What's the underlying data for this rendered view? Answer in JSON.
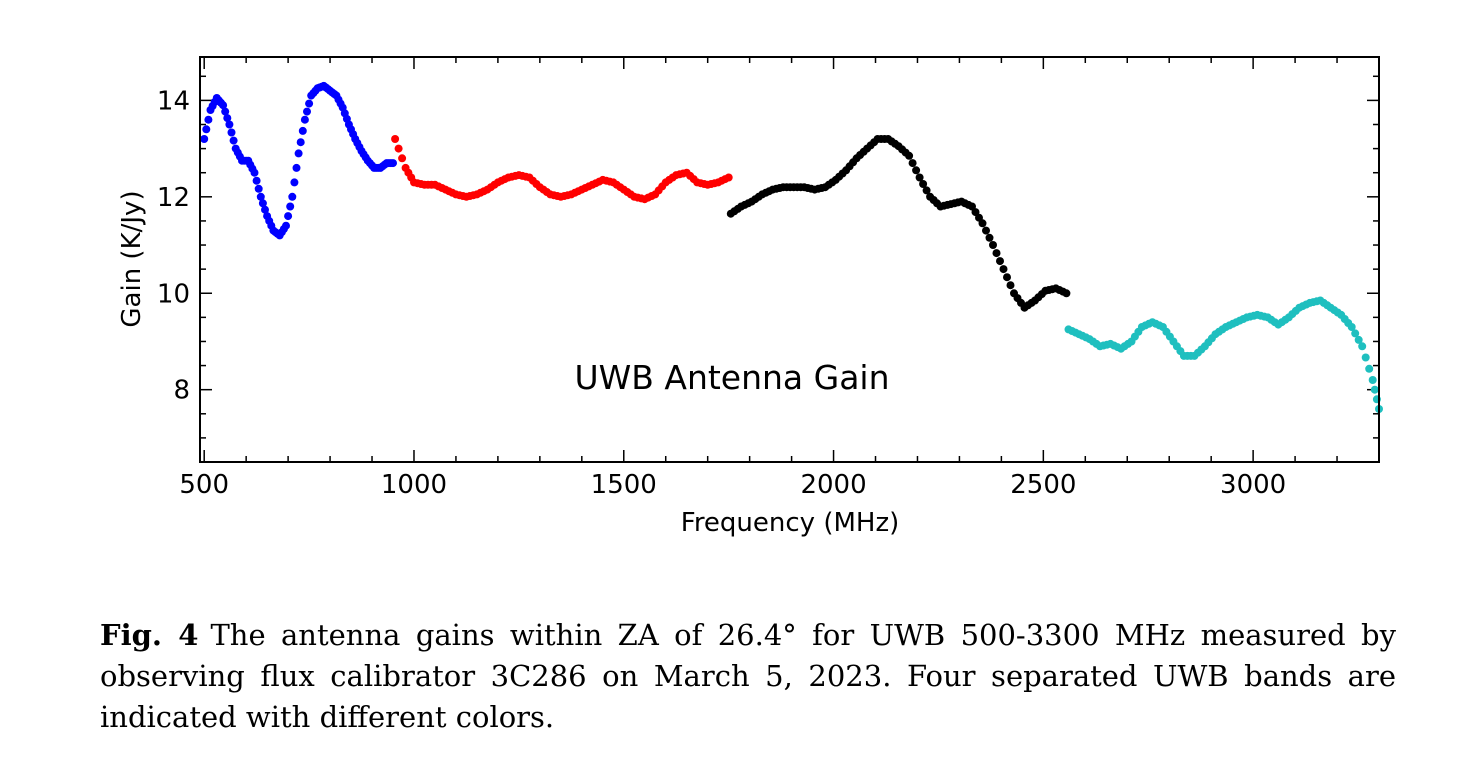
{
  "chart_data": {
    "type": "scatter",
    "title": "",
    "annotation": "UWB Antenna Gain",
    "xlabel": "Frequency (MHz)",
    "ylabel": "Gain (K/Jy)",
    "xlim": [
      490,
      3300
    ],
    "ylim": [
      6.5,
      14.9
    ],
    "xticks": [
      500,
      1000,
      1500,
      2000,
      2500,
      3000
    ],
    "yticks": [
      8,
      10,
      12,
      14
    ],
    "legend": "none",
    "grid": false,
    "series": [
      {
        "color": "#0000ff",
        "x": [
          500,
          515,
          530,
          545,
          560,
          575,
          590,
          605,
          620,
          635,
          650,
          665,
          680,
          695,
          710,
          725,
          740,
          755,
          770,
          785,
          800,
          815,
          830,
          845,
          860,
          875,
          890,
          905,
          920,
          935,
          950
        ],
        "y": [
          13.2,
          13.8,
          14.05,
          13.9,
          13.5,
          13.0,
          12.75,
          12.75,
          12.5,
          12.0,
          11.6,
          11.3,
          11.2,
          11.4,
          12.0,
          12.9,
          13.6,
          14.1,
          14.25,
          14.3,
          14.2,
          14.1,
          13.85,
          13.5,
          13.2,
          12.95,
          12.75,
          12.6,
          12.6,
          12.7,
          12.7
        ]
      },
      {
        "color": "#ff0000",
        "x": [
          955,
          980,
          1000,
          1025,
          1050,
          1075,
          1100,
          1125,
          1150,
          1175,
          1200,
          1225,
          1250,
          1275,
          1300,
          1325,
          1350,
          1375,
          1400,
          1425,
          1450,
          1475,
          1500,
          1525,
          1550,
          1575,
          1600,
          1625,
          1650,
          1675,
          1700,
          1725,
          1750
        ],
        "y": [
          13.2,
          12.6,
          12.3,
          12.25,
          12.25,
          12.15,
          12.05,
          12.0,
          12.05,
          12.15,
          12.3,
          12.4,
          12.45,
          12.4,
          12.2,
          12.05,
          12.0,
          12.05,
          12.15,
          12.25,
          12.35,
          12.3,
          12.15,
          12.0,
          11.95,
          12.05,
          12.3,
          12.45,
          12.5,
          12.3,
          12.25,
          12.3,
          12.4
        ]
      },
      {
        "color": "#000000",
        "x": [
          1755,
          1780,
          1805,
          1830,
          1855,
          1880,
          1905,
          1930,
          1955,
          1980,
          2005,
          2030,
          2055,
          2080,
          2105,
          2130,
          2155,
          2180,
          2205,
          2230,
          2255,
          2280,
          2305,
          2330,
          2355,
          2380,
          2405,
          2430,
          2455,
          2480,
          2505,
          2530,
          2555
        ],
        "y": [
          11.65,
          11.8,
          11.9,
          12.05,
          12.15,
          12.2,
          12.2,
          12.2,
          12.15,
          12.2,
          12.35,
          12.55,
          12.8,
          13.0,
          13.2,
          13.2,
          13.05,
          12.85,
          12.4,
          12.0,
          11.8,
          11.85,
          11.9,
          11.8,
          11.45,
          11.0,
          10.5,
          10.0,
          9.7,
          9.85,
          10.05,
          10.1,
          10.0
        ]
      },
      {
        "color": "#1fbfbf",
        "x": [
          2560,
          2585,
          2610,
          2635,
          2660,
          2685,
          2710,
          2735,
          2760,
          2785,
          2810,
          2835,
          2860,
          2885,
          2910,
          2935,
          2960,
          2985,
          3010,
          3035,
          3060,
          3085,
          3110,
          3135,
          3160,
          3185,
          3210,
          3235,
          3260,
          3285,
          3300
        ],
        "y": [
          9.25,
          9.15,
          9.05,
          8.9,
          8.95,
          8.85,
          9.0,
          9.3,
          9.4,
          9.3,
          9.0,
          8.7,
          8.7,
          8.9,
          9.15,
          9.3,
          9.4,
          9.5,
          9.55,
          9.5,
          9.35,
          9.5,
          9.7,
          9.8,
          9.85,
          9.7,
          9.55,
          9.3,
          8.9,
          8.2,
          7.6
        ]
      }
    ]
  },
  "caption": {
    "label": "Fig. 4",
    "text": "The antenna gains within ZA of 26.4° for UWB 500-3300 MHz measured by observing flux calibrator 3C286 on March 5, 2023. Four separated UWB bands are indicated with different colors."
  }
}
